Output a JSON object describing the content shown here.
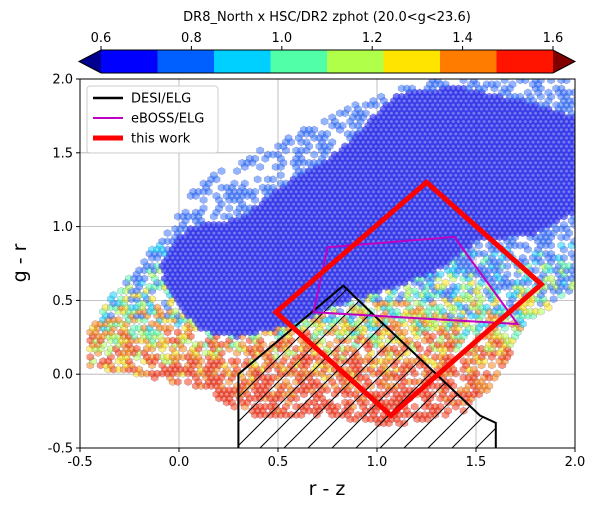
{
  "chart_data": {
    "type": "scatter",
    "title": "DR8_North  x  HSC/DR2 zphot (20.0<g<23.6)",
    "xlabel": "r - z",
    "ylabel": "g - r",
    "xlim": [
      -0.5,
      2.0
    ],
    "ylim": [
      -0.5,
      2.0
    ],
    "x_ticks": [
      "-0.5",
      "0.0",
      "0.5",
      "1.0",
      "1.5",
      "2.0"
    ],
    "y_ticks": [
      "-0.5",
      "0.0",
      "0.5",
      "1.0",
      "1.5",
      "2.0"
    ],
    "grid": true,
    "legend_position": "upper-left",
    "colorbar": {
      "min": 0.6,
      "max": 1.6,
      "ticks": [
        "0.6",
        "0.8",
        "1.0",
        "1.2",
        "1.4",
        "1.6"
      ],
      "colors": [
        "#00008f",
        "#0000ff",
        "#0060ff",
        "#00d0ff",
        "#50ffa8",
        "#b0ff48",
        "#ffe400",
        "#ff7c00",
        "#ff1400",
        "#800000"
      ]
    },
    "series": [
      {
        "name": "DESI/ELG",
        "color": "#000000",
        "hatched": true,
        "polygon": [
          [
            0.3,
            -0.5
          ],
          [
            0.3,
            0.0
          ],
          [
            0.83,
            0.6
          ],
          [
            1.0,
            0.38
          ],
          [
            1.52,
            -0.28
          ],
          [
            1.6,
            -0.33
          ],
          [
            1.6,
            -0.5
          ]
        ]
      },
      {
        "name": "eBOSS/ELG",
        "color": "#c000c0",
        "polygon": [
          [
            0.75,
            0.86
          ],
          [
            1.39,
            0.93
          ],
          [
            1.71,
            0.34
          ],
          [
            0.68,
            0.42
          ]
        ]
      },
      {
        "name": "this work",
        "color": "#ff0000",
        "polygon": [
          [
            1.25,
            1.3
          ],
          [
            1.83,
            0.61
          ],
          [
            1.07,
            -0.28
          ],
          [
            0.49,
            0.42
          ]
        ]
      }
    ]
  }
}
